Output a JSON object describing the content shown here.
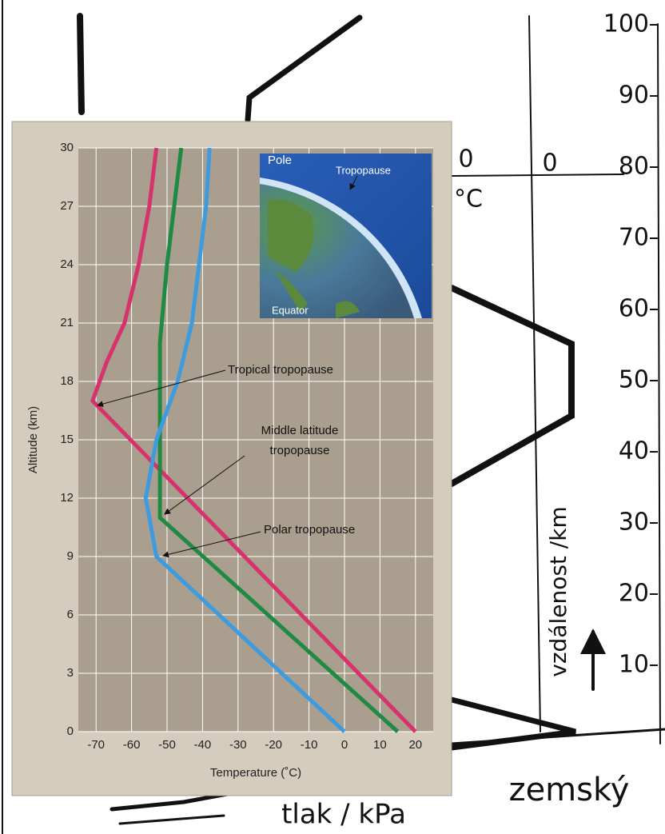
{
  "chart_data": {
    "type": "line",
    "xlabel": "Temperature (˚C)",
    "ylabel": "Altitude (km)",
    "xlim": [
      -75,
      25
    ],
    "ylim": [
      0,
      30
    ],
    "xticks": [
      -70,
      -60,
      -50,
      -40,
      -30,
      -20,
      -10,
      0,
      10,
      20
    ],
    "yticks": [
      0,
      3,
      6,
      9,
      12,
      15,
      18,
      21,
      24,
      27,
      30
    ],
    "grid": true,
    "series": [
      {
        "color": "#d6336c",
        "x": [
          20,
          -71,
          -67,
          -62,
          -58,
          -55,
          -53
        ],
        "values": [
          0,
          17,
          19,
          21,
          24,
          27,
          30
        ]
      },
      {
        "color": "#1f8a43",
        "x": [
          15,
          -52,
          -52,
          -50,
          -48,
          -46
        ],
        "values": [
          0,
          11,
          20,
          24,
          27,
          30
        ]
      },
      {
        "color": "#3d9be0",
        "x": [
          0,
          -53,
          -56,
          -53,
          -47,
          -43,
          -41,
          -39,
          -38
        ],
        "values": [
          0,
          9,
          12,
          15,
          18,
          21,
          24,
          27,
          30
        ]
      }
    ],
    "annotations": [
      {
        "text": "Tropical tropopause"
      },
      {
        "lines": [
          "Middle latitude",
          "tropopause"
        ]
      },
      {
        "text": "Polar tropopause"
      }
    ],
    "inset_labels": [
      "Pole",
      "Tropopause",
      "Equator"
    ]
  },
  "background": {
    "scale_ticks": [
      100,
      90,
      80,
      70,
      60,
      50,
      40,
      30,
      20,
      10
    ],
    "scale_title": "vzdálenost /km",
    "zero_labels": [
      "0",
      "0"
    ],
    "unit": "°C",
    "surface": "zemský",
    "pressure": "tlak / kPa"
  }
}
